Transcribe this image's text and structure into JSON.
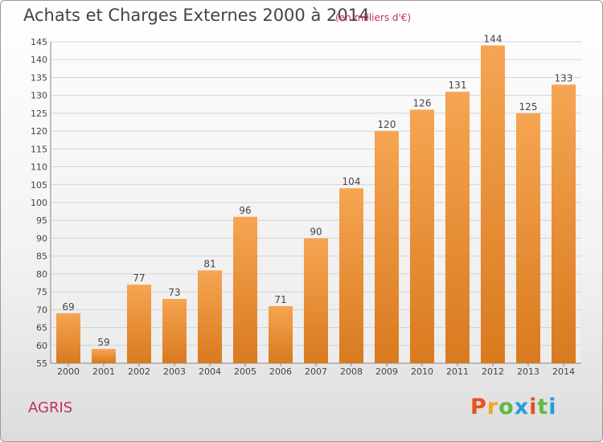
{
  "header": {
    "title": "Achats et Charges Externes 2000 à 2014",
    "subtitle": "(en milliers d'€)"
  },
  "footer": {
    "commune": "AGRIS",
    "logo_text": "Proxiti"
  },
  "colors": {
    "bar_top": "#f6a552",
    "bar_bottom": "#d97a1e",
    "accent": "#c42f5a",
    "logo": [
      "#e94f1d",
      "#f5a623",
      "#5dbb46",
      "#1f9fd8",
      "#e94f1d",
      "#5dbb46",
      "#1f9fd8"
    ]
  },
  "chart_data": {
    "type": "bar",
    "title": "Achats et Charges Externes 2000 à 2014",
    "subtitle": "(en milliers d'€)",
    "categories": [
      "2000",
      "2001",
      "2002",
      "2003",
      "2004",
      "2005",
      "2006",
      "2007",
      "2008",
      "2009",
      "2010",
      "2011",
      "2012",
      "2013",
      "2014"
    ],
    "values": [
      69,
      59,
      77,
      73,
      81,
      96,
      71,
      90,
      104,
      120,
      126,
      131,
      144,
      125,
      133
    ],
    "ylim": [
      55,
      145
    ],
    "yticks": [
      55,
      60,
      65,
      70,
      75,
      80,
      85,
      90,
      95,
      100,
      105,
      110,
      115,
      120,
      125,
      130,
      135,
      140,
      145
    ],
    "grid": true,
    "data_labels": true
  }
}
